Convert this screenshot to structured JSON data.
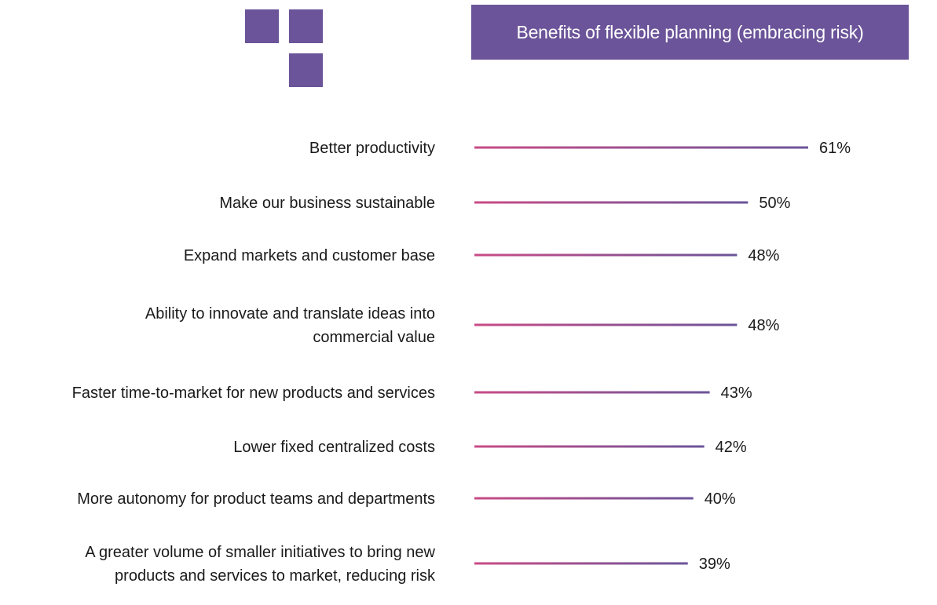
{
  "title": "Benefits of flexible planning (embracing risk)",
  "colors": {
    "accent": "#6b5499",
    "bar_start": "#c94b86",
    "bar_end": "#6b5499",
    "text": "#1a1a1a"
  },
  "chart_data": {
    "type": "bar",
    "orientation": "horizontal",
    "title": "Benefits of flexible planning (embracing risk)",
    "xlabel": "",
    "ylabel": "",
    "xlim": [
      0,
      61
    ],
    "grid": false,
    "legend": "none",
    "value_format": "percent",
    "categories": [
      [
        "Better productivity"
      ],
      [
        "Make our business sustainable"
      ],
      [
        "Expand markets and customer base"
      ],
      [
        "Ability to innovate and translate ideas into",
        "commercial value"
      ],
      [
        "Faster time-to-market for new products and services"
      ],
      [
        "Lower fixed centralized costs"
      ],
      [
        "More autonomy for product teams and departments"
      ],
      [
        "A greater volume of smaller initiatives to bring new",
        "products and services to market, reducing risk"
      ]
    ],
    "values": [
      61,
      50,
      48,
      48,
      43,
      42,
      40,
      39
    ],
    "value_labels": [
      "61%",
      "50%",
      "48%",
      "48%",
      "43%",
      "42%",
      "40%",
      "39%"
    ]
  }
}
